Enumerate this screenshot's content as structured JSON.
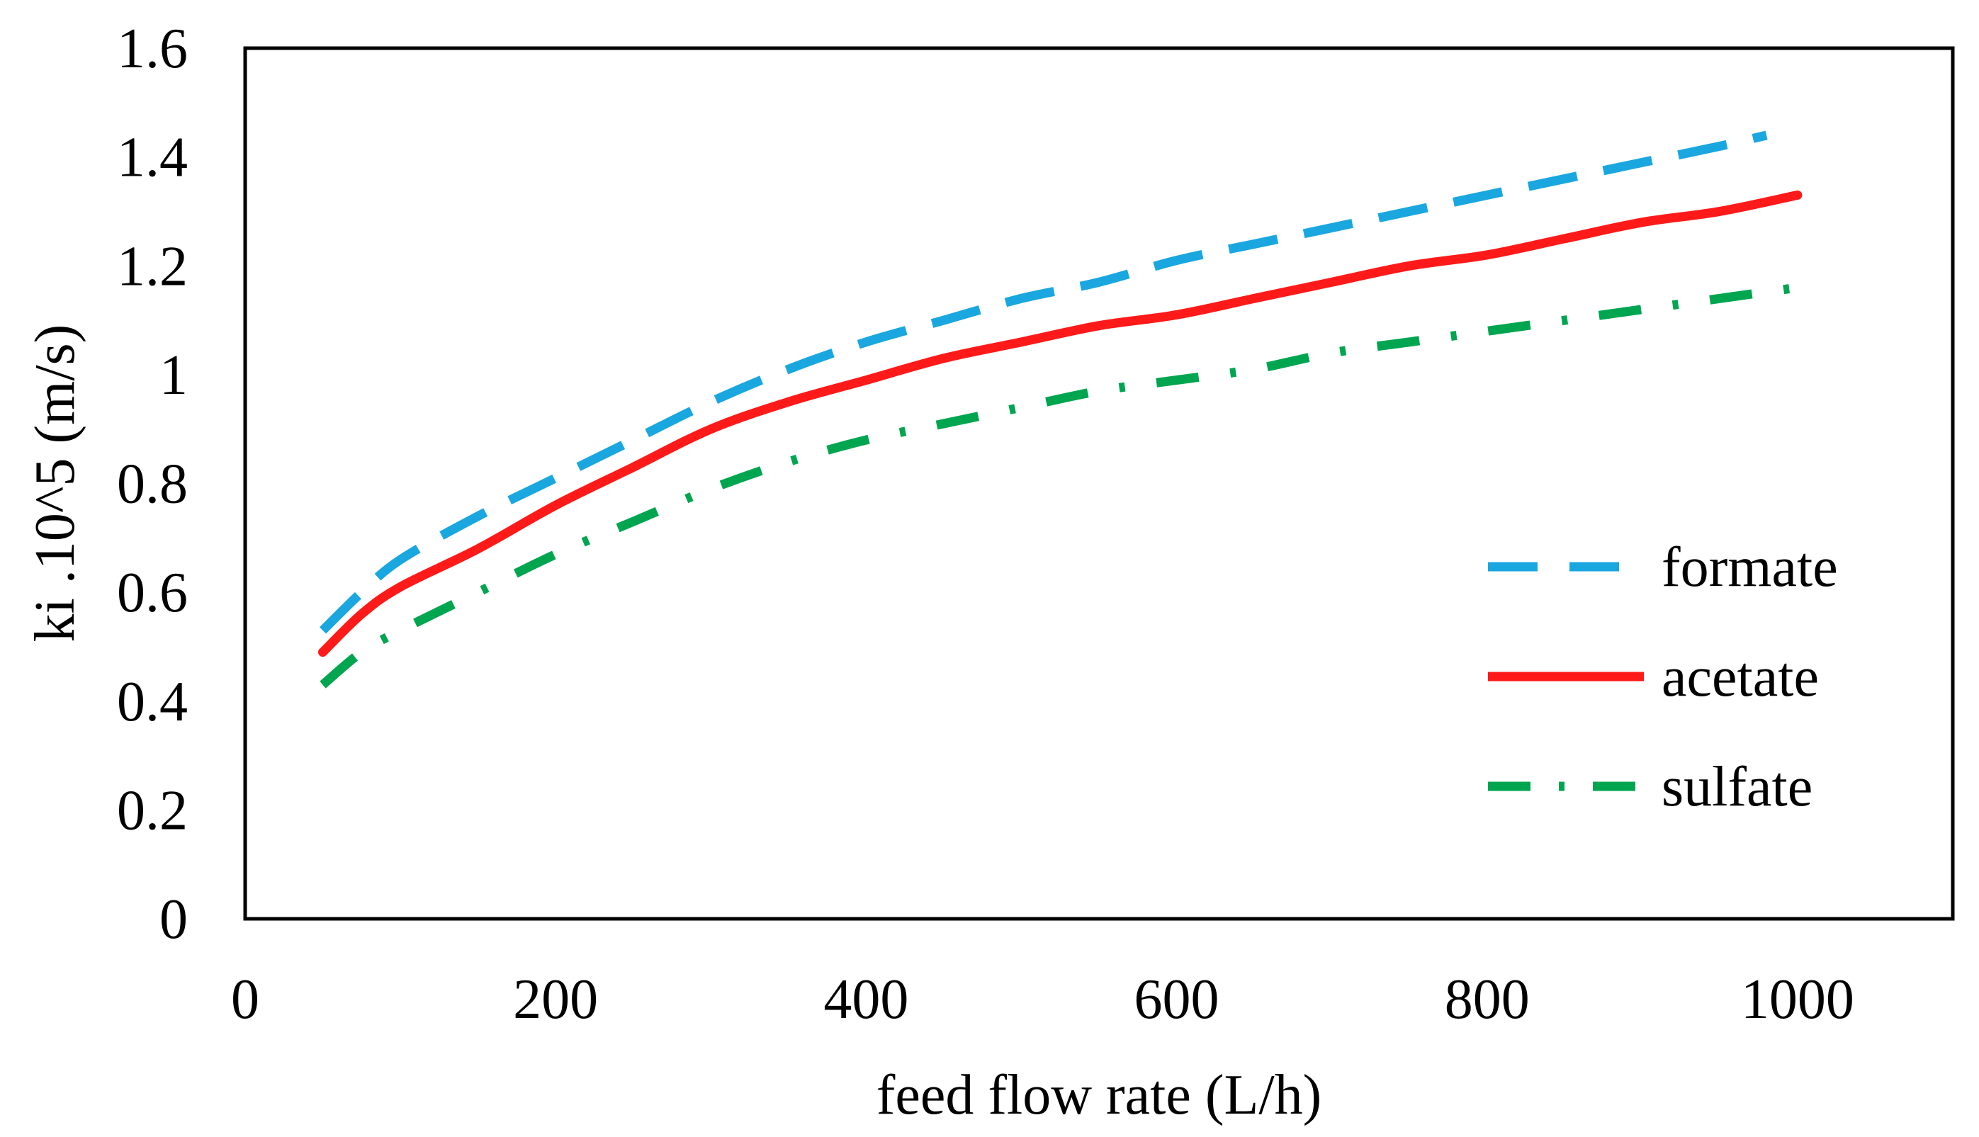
{
  "chart_data": {
    "type": "line",
    "title": "",
    "xlabel": "feed flow rate (L/h)",
    "ylabel": "ki .10^5 (m/s)",
    "xlim": [
      0,
      1100
    ],
    "ylim": [
      0,
      1.6
    ],
    "x_ticks": [
      "0",
      "200",
      "400",
      "600",
      "800",
      "1000"
    ],
    "y_ticks": [
      "0",
      "0.2",
      "0.4",
      "0.6",
      "0.8",
      "1",
      "1.2",
      "1.4",
      "1.6"
    ],
    "grid": false,
    "legend_position": "right",
    "series": [
      {
        "name": "formate",
        "color": "#1AA7E0",
        "style": "dashed",
        "x": [
          50,
          75,
          100,
          150,
          200,
          250,
          300,
          350,
          400,
          450,
          500,
          550,
          600,
          650,
          700,
          750,
          800,
          850,
          900,
          950,
          980
        ],
        "y": [
          0.53,
          0.6,
          0.66,
          0.74,
          0.81,
          0.88,
          0.95,
          1.01,
          1.06,
          1.1,
          1.14,
          1.17,
          1.21,
          1.24,
          1.27,
          1.3,
          1.33,
          1.36,
          1.39,
          1.42,
          1.44
        ]
      },
      {
        "name": "acetate",
        "color": "#FF1A1A",
        "style": "solid",
        "x": [
          50,
          75,
          100,
          150,
          200,
          250,
          300,
          350,
          400,
          450,
          500,
          550,
          600,
          650,
          700,
          750,
          800,
          850,
          900,
          950,
          1000
        ],
        "y": [
          0.49,
          0.56,
          0.61,
          0.68,
          0.76,
          0.83,
          0.9,
          0.95,
          0.99,
          1.03,
          1.06,
          1.09,
          1.11,
          1.14,
          1.17,
          1.2,
          1.22,
          1.25,
          1.28,
          1.3,
          1.33
        ]
      },
      {
        "name": "sulfate",
        "color": "#00A550",
        "style": "dashdot",
        "x": [
          50,
          75,
          100,
          150,
          200,
          250,
          300,
          350,
          400,
          450,
          500,
          550,
          600,
          650,
          700,
          750,
          800,
          850,
          900,
          950,
          1000
        ],
        "y": [
          0.43,
          0.49,
          0.53,
          0.6,
          0.67,
          0.73,
          0.79,
          0.84,
          0.88,
          0.91,
          0.94,
          0.97,
          0.99,
          1.01,
          1.04,
          1.06,
          1.08,
          1.1,
          1.12,
          1.14,
          1.16
        ]
      }
    ]
  }
}
